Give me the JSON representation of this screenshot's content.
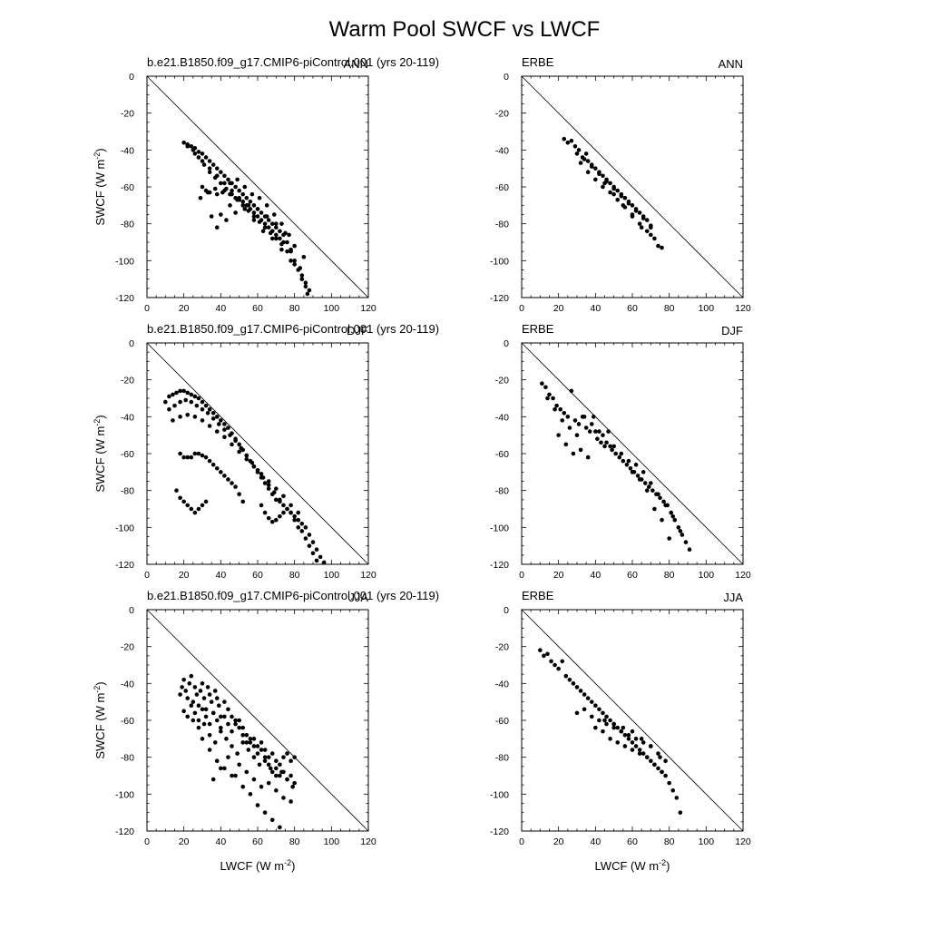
{
  "figure": {
    "title": "Warm Pool SWCF vs LWCF"
  },
  "chart_data": [
    {
      "type": "scatter",
      "panel": "model-ann",
      "left_label": "b.e21.B1850.f09_g17.CMIP6-piControl.001 (yrs 20-119)",
      "right_label": "ANN",
      "xlabel": "",
      "ylabel": "SWCF (W m",
      "ylabel_sup": "-2",
      "xlim": [
        0,
        120
      ],
      "ylim": [
        -120,
        0
      ],
      "xticks": [
        "0",
        "20",
        "40",
        "60",
        "80",
        "100",
        "120"
      ],
      "yticks": [
        "0",
        "-20",
        "-40",
        "-60",
        "-80",
        "-100",
        "-120"
      ],
      "reference_line": "y = -x",
      "points_x": [
        20,
        22,
        24,
        26,
        28,
        30,
        32,
        34,
        36,
        38,
        40,
        42,
        44,
        46,
        48,
        50,
        52,
        54,
        56,
        58,
        60,
        62,
        64,
        66,
        68,
        70,
        72,
        74,
        76,
        78,
        80,
        82,
        84,
        86,
        88,
        25,
        28,
        31,
        34,
        37,
        40,
        43,
        46,
        49,
        52,
        55,
        58,
        61,
        64,
        67,
        70,
        73,
        22,
        26,
        30,
        34,
        38,
        42,
        46,
        50,
        54,
        58,
        62,
        66,
        70,
        74,
        78,
        30,
        32,
        34,
        38,
        42,
        45,
        48,
        52,
        56,
        60,
        64,
        68,
        72,
        76,
        80,
        84,
        86,
        87,
        35,
        40,
        45,
        50,
        55,
        60,
        65,
        70,
        75,
        80,
        85,
        38,
        43,
        48,
        53,
        58,
        63,
        68,
        73,
        78,
        83,
        29,
        33,
        37,
        41,
        45,
        49,
        53,
        57,
        61,
        65,
        69,
        73,
        77
      ],
      "points_y": [
        -36,
        -37,
        -38,
        -39,
        -41,
        -42,
        -44,
        -46,
        -48,
        -50,
        -52,
        -54,
        -56,
        -58,
        -60,
        -62,
        -64,
        -66,
        -68,
        -70,
        -72,
        -74,
        -76,
        -78,
        -80,
        -82,
        -84,
        -86,
        -90,
        -95,
        -100,
        -105,
        -108,
        -112,
        -116,
        -40,
        -44,
        -48,
        -52,
        -55,
        -58,
        -61,
        -64,
        -67,
        -70,
        -73,
        -76,
        -79,
        -82,
        -85,
        -88,
        -91,
        -38,
        -42,
        -46,
        -50,
        -54,
        -58,
        -62,
        -66,
        -70,
        -74,
        -78,
        -82,
        -86,
        -90,
        -94,
        -60,
        -62,
        -63,
        -64,
        -62,
        -64,
        -66,
        -68,
        -72,
        -76,
        -80,
        -84,
        -88,
        -95,
        -102,
        -110,
        -114,
        -118,
        -76,
        -75,
        -70,
        -67,
        -70,
        -72,
        -76,
        -80,
        -85,
        -92,
        -98,
        -82,
        -78,
        -74,
        -72,
        -78,
        -84,
        -88,
        -94,
        -100,
        -104,
        -66,
        -63,
        -61,
        -63,
        -58,
        -56,
        -60,
        -64,
        -66,
        -70,
        -75,
        -80,
        -86
      ]
    },
    {
      "type": "scatter",
      "panel": "obs-ann",
      "left_label": "ERBE",
      "right_label": "ANN",
      "xlabel": "",
      "xlim": [
        0,
        120
      ],
      "ylim": [
        -120,
        0
      ],
      "xticks": [
        "0",
        "20",
        "40",
        "60",
        "80",
        "100",
        "120"
      ],
      "yticks": [
        "0",
        "-20",
        "-40",
        "-60",
        "-80",
        "-100",
        "-120"
      ],
      "reference_line": "y = -x",
      "points_x": [
        23,
        25,
        27,
        29,
        31,
        33,
        35,
        36,
        38,
        40,
        42,
        44,
        46,
        48,
        50,
        52,
        54,
        56,
        58,
        60,
        62,
        64,
        66,
        68,
        70,
        72,
        74,
        76,
        30,
        34,
        38,
        42,
        46,
        50,
        54,
        58,
        62,
        66,
        70,
        32,
        36,
        40,
        44,
        48,
        52,
        56,
        60,
        64,
        68,
        45,
        50,
        55,
        60,
        65,
        70
      ],
      "points_y": [
        -34,
        -36,
        -35,
        -38,
        -40,
        -44,
        -42,
        -46,
        -48,
        -50,
        -52,
        -54,
        -56,
        -58,
        -60,
        -62,
        -64,
        -66,
        -68,
        -70,
        -72,
        -74,
        -76,
        -78,
        -82,
        -88,
        -92,
        -93,
        -42,
        -45,
        -49,
        -53,
        -57,
        -61,
        -65,
        -69,
        -73,
        -77,
        -81,
        -47,
        -52,
        -56,
        -60,
        -63,
        -67,
        -71,
        -75,
        -80,
        -84,
        -58,
        -64,
        -70,
        -76,
        -82,
        -86
      ]
    },
    {
      "type": "scatter",
      "panel": "model-djf",
      "left_label": "b.e21.B1850.f09_g17.CMIP6-piControl.001 (yrs 20-119)",
      "right_label": "DJF",
      "xlabel": "",
      "ylabel": "SWCF (W m",
      "ylabel_sup": "-2",
      "xlim": [
        0,
        120
      ],
      "ylim": [
        -120,
        0
      ],
      "xticks": [
        "0",
        "20",
        "40",
        "60",
        "80",
        "100",
        "120"
      ],
      "yticks": [
        "0",
        "-20",
        "-40",
        "-60",
        "-80",
        "-100",
        "-120"
      ],
      "reference_line": "y = -x",
      "points_x": [
        10,
        12,
        14,
        16,
        18,
        20,
        22,
        24,
        26,
        28,
        30,
        32,
        34,
        36,
        38,
        40,
        42,
        44,
        46,
        48,
        50,
        52,
        54,
        56,
        58,
        60,
        62,
        64,
        66,
        68,
        70,
        72,
        74,
        76,
        78,
        80,
        82,
        84,
        86,
        88,
        90,
        92,
        94,
        96,
        12,
        15,
        18,
        21,
        24,
        27,
        30,
        33,
        36,
        39,
        42,
        45,
        48,
        51,
        54,
        57,
        60,
        63,
        66,
        69,
        72,
        14,
        18,
        22,
        26,
        30,
        34,
        38,
        42,
        46,
        50,
        54,
        58,
        62,
        66,
        70,
        74,
        78,
        82,
        18,
        20,
        22,
        24,
        26,
        28,
        30,
        32,
        34,
        36,
        38,
        40,
        42,
        44,
        46,
        48,
        50,
        52,
        16,
        18,
        20,
        22,
        24,
        26,
        28,
        30,
        32,
        62,
        64,
        66,
        68,
        70,
        72,
        74,
        76,
        78,
        80,
        82,
        84,
        86,
        88,
        90,
        92
      ],
      "points_y": [
        -32,
        -29,
        -28,
        -27,
        -26,
        -26,
        -27,
        -28,
        -29,
        -30,
        -32,
        -34,
        -36,
        -38,
        -40,
        -42,
        -44,
        -46,
        -49,
        -52,
        -55,
        -58,
        -61,
        -64,
        -67,
        -70,
        -73,
        -76,
        -79,
        -82,
        -85,
        -86,
        -88,
        -90,
        -92,
        -94,
        -96,
        -98,
        -100,
        -104,
        -108,
        -112,
        -116,
        -119,
        -36,
        -34,
        -32,
        -31,
        -32,
        -34,
        -36,
        -38,
        -41,
        -44,
        -47,
        -50,
        -53,
        -57,
        -61,
        -65,
        -69,
        -73,
        -77,
        -81,
        -85,
        -42,
        -40,
        -39,
        -40,
        -42,
        -45,
        -48,
        -51,
        -55,
        -59,
        -63,
        -67,
        -71,
        -75,
        -79,
        -83,
        -88,
        -92,
        -60,
        -62,
        -62,
        -62,
        -60,
        -60,
        -61,
        -62,
        -64,
        -66,
        -68,
        -70,
        -72,
        -74,
        -76,
        -78,
        -82,
        -86,
        -80,
        -84,
        -86,
        -88,
        -90,
        -92,
        -90,
        -88,
        -86,
        -88,
        -92,
        -95,
        -97,
        -96,
        -94,
        -92,
        -90,
        -92,
        -96,
        -100,
        -102,
        -106,
        -110,
        -114,
        -118
      ]
    },
    {
      "type": "scatter",
      "panel": "obs-djf",
      "left_label": "ERBE",
      "right_label": "DJF",
      "xlabel": "",
      "xlim": [
        0,
        120
      ],
      "ylim": [
        -120,
        0
      ],
      "xticks": [
        "0",
        "20",
        "40",
        "60",
        "80",
        "100",
        "120"
      ],
      "yticks": [
        "0",
        "-20",
        "-40",
        "-60",
        "-80",
        "-100",
        "-120"
      ],
      "reference_line": "y = -x",
      "points_x": [
        11,
        13,
        15,
        17,
        19,
        21,
        23,
        25,
        27,
        29,
        31,
        33,
        35,
        37,
        39,
        41,
        43,
        45,
        47,
        49,
        51,
        53,
        55,
        57,
        59,
        61,
        63,
        65,
        67,
        69,
        71,
        73,
        75,
        77,
        79,
        81,
        83,
        85,
        87,
        89,
        91,
        14,
        18,
        22,
        26,
        30,
        34,
        38,
        42,
        46,
        50,
        54,
        58,
        62,
        66,
        70,
        74,
        78,
        82,
        86,
        20,
        24,
        28,
        32,
        36,
        40,
        44,
        48,
        60,
        64,
        68,
        72,
        76,
        80
      ],
      "points_y": [
        -22,
        -24,
        -28,
        -30,
        -34,
        -36,
        -38,
        -40,
        -26,
        -42,
        -44,
        -40,
        -46,
        -48,
        -40,
        -52,
        -54,
        -56,
        -48,
        -58,
        -60,
        -62,
        -64,
        -66,
        -68,
        -70,
        -72,
        -74,
        -76,
        -78,
        -80,
        -82,
        -84,
        -86,
        -88,
        -92,
        -96,
        -100,
        -104,
        -108,
        -112,
        -30,
        -36,
        -42,
        -46,
        -50,
        -40,
        -44,
        -48,
        -54,
        -56,
        -60,
        -64,
        -66,
        -70,
        -76,
        -82,
        -88,
        -94,
        -102,
        -50,
        -55,
        -60,
        -58,
        -62,
        -48,
        -50,
        -56,
        -70,
        -74,
        -80,
        -90,
        -96,
        -106
      ]
    },
    {
      "type": "scatter",
      "panel": "model-jja",
      "left_label": "b.e21.B1850.f09_g17.CMIP6-piControl.001 (yrs 20-119)",
      "right_label": "JJA",
      "xlabel": "LWCF (W m",
      "xlabel_sup": "-2",
      "ylabel": "SWCF (W m",
      "ylabel_sup": "-2",
      "xlim": [
        0,
        120
      ],
      "ylim": [
        -120,
        0
      ],
      "xticks": [
        "0",
        "20",
        "40",
        "60",
        "80",
        "100",
        "120"
      ],
      "yticks": [
        "0",
        "-20",
        "-40",
        "-60",
        "-80",
        "-100",
        "-120"
      ],
      "reference_line": "y = -x",
      "points_x": [
        18,
        19,
        20,
        21,
        22,
        23,
        24,
        25,
        26,
        27,
        28,
        29,
        30,
        31,
        32,
        33,
        34,
        35,
        36,
        37,
        38,
        39,
        40,
        42,
        44,
        46,
        48,
        50,
        52,
        54,
        56,
        58,
        60,
        62,
        64,
        66,
        68,
        70,
        72,
        74,
        76,
        78,
        80,
        20,
        22,
        24,
        26,
        28,
        30,
        32,
        34,
        36,
        38,
        40,
        42,
        44,
        46,
        48,
        50,
        52,
        54,
        56,
        58,
        60,
        62,
        64,
        66,
        68,
        70,
        72,
        74,
        76,
        78,
        80,
        25,
        28,
        31,
        34,
        37,
        40,
        43,
        46,
        49,
        52,
        55,
        58,
        61,
        64,
        67,
        70,
        73,
        76,
        79,
        30,
        34,
        38,
        42,
        46,
        50,
        54,
        58,
        62,
        66,
        70,
        74,
        78,
        36,
        40,
        44,
        48,
        52,
        56,
        60,
        64,
        68,
        72
      ],
      "points_y": [
        -46,
        -42,
        -38,
        -44,
        -48,
        -40,
        -36,
        -50,
        -42,
        -46,
        -52,
        -44,
        -40,
        -48,
        -54,
        -42,
        -46,
        -50,
        -56,
        -44,
        -48,
        -52,
        -58,
        -50,
        -54,
        -58,
        -62,
        -60,
        -64,
        -68,
        -72,
        -70,
        -74,
        -72,
        -76,
        -80,
        -78,
        -82,
        -84,
        -80,
        -78,
        -82,
        -80,
        -55,
        -58,
        -52,
        -56,
        -60,
        -54,
        -58,
        -62,
        -56,
        -60,
        -64,
        -58,
        -62,
        -66,
        -60,
        -64,
        -68,
        -72,
        -70,
        -74,
        -78,
        -76,
        -80,
        -84,
        -88,
        -86,
        -90,
        -88,
        -92,
        -90,
        -94,
        -60,
        -64,
        -62,
        -68,
        -72,
        -66,
        -70,
        -74,
        -78,
        -72,
        -76,
        -80,
        -84,
        -82,
        -86,
        -90,
        -88,
        -92,
        -96,
        -70,
        -76,
        -82,
        -86,
        -90,
        -84,
        -88,
        -92,
        -96,
        -94,
        -98,
        -102,
        -104,
        -92,
        -86,
        -80,
        -90,
        -96,
        -100,
        -106,
        -110,
        -114,
        -118
      ]
    },
    {
      "type": "scatter",
      "panel": "obs-jja",
      "left_label": "ERBE",
      "right_label": "JJA",
      "xlabel": "LWCF (W m",
      "xlabel_sup": "-2",
      "xlim": [
        0,
        120
      ],
      "ylim": [
        -120,
        0
      ],
      "xticks": [
        "0",
        "20",
        "40",
        "60",
        "80",
        "100",
        "120"
      ],
      "yticks": [
        "0",
        "-20",
        "-40",
        "-60",
        "-80",
        "-100",
        "-120"
      ],
      "reference_line": "y = -x",
      "points_x": [
        10,
        12,
        14,
        16,
        18,
        20,
        22,
        24,
        26,
        28,
        30,
        32,
        34,
        36,
        38,
        40,
        42,
        44,
        46,
        48,
        50,
        52,
        54,
        56,
        58,
        60,
        62,
        64,
        66,
        68,
        70,
        72,
        74,
        76,
        78,
        80,
        82,
        84,
        86,
        30,
        34,
        38,
        42,
        46,
        50,
        54,
        58,
        62,
        66,
        70,
        74,
        78,
        40,
        44,
        48,
        52,
        56,
        60,
        64,
        68,
        72,
        76,
        45,
        50,
        55,
        60,
        65,
        70,
        75
      ],
      "points_y": [
        -22,
        -25,
        -24,
        -28,
        -30,
        -32,
        -28,
        -36,
        -38,
        -40,
        -42,
        -44,
        -46,
        -48,
        -50,
        -52,
        -54,
        -56,
        -58,
        -60,
        -62,
        -64,
        -66,
        -68,
        -70,
        -72,
        -74,
        -76,
        -78,
        -80,
        -82,
        -84,
        -86,
        -88,
        -90,
        -94,
        -98,
        -102,
        -110,
        -56,
        -54,
        -58,
        -60,
        -62,
        -64,
        -66,
        -68,
        -70,
        -72,
        -74,
        -78,
        -82,
        -64,
        -66,
        -70,
        -72,
        -74,
        -76,
        -78,
        -80,
        -84,
        -88,
        -60,
        -62,
        -64,
        -66,
        -70,
        -74,
        -80
      ]
    }
  ]
}
